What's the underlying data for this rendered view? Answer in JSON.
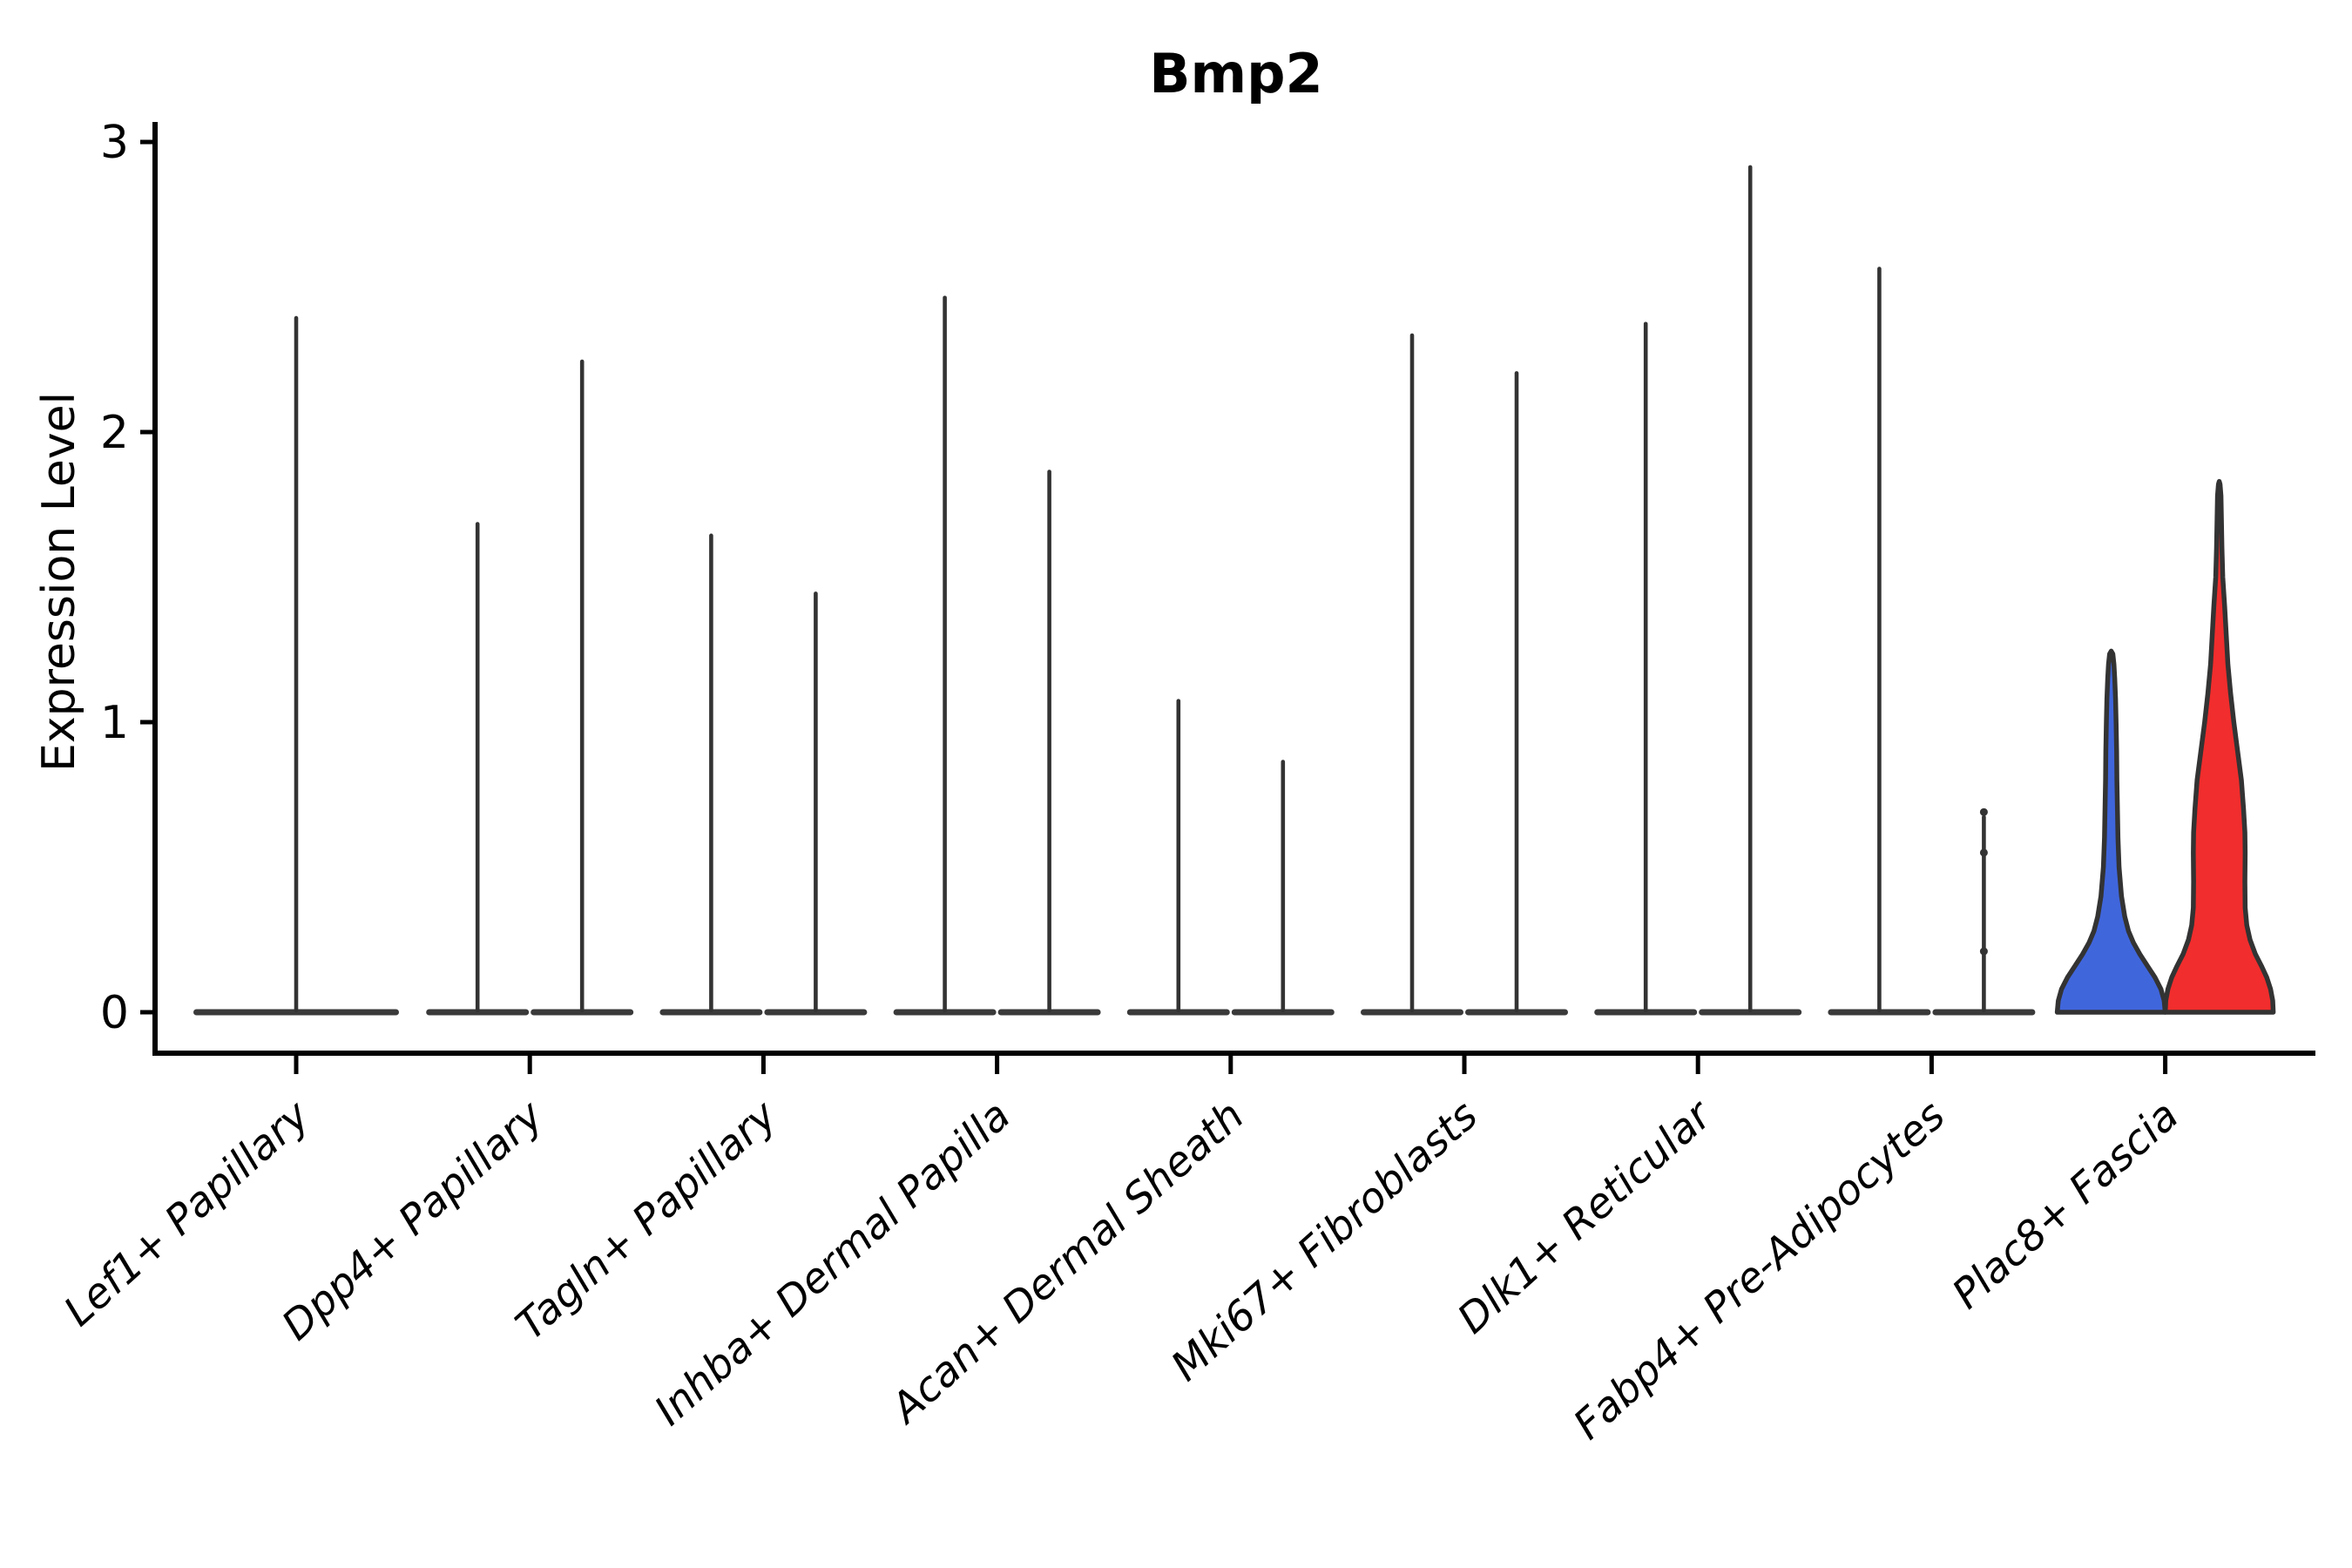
{
  "title": "Bmp2",
  "y_axis_title": "Expression Level",
  "chart_data": {
    "type": "violin",
    "title": "Bmp2",
    "xlabel": "",
    "ylabel": "Expression Level",
    "ylim": [
      0,
      3
    ],
    "y_ticks": [
      0,
      1,
      2,
      3
    ],
    "grid": false,
    "legend": "none",
    "x_tick_style": "italic, rotated 42deg, right-anchored",
    "categories": [
      "Lef1+ Papillary",
      "Dpp4+ Papillary",
      "Tagln+ Papillary",
      "Inhba+ Dermal Papilla",
      "Acan+ Dermal Sheath",
      "Mki67+ Fibroblasts",
      "Dlk1+ Reticular",
      "Fabp4+ Pre-Adipocytes",
      "Plac8+ Fascia"
    ],
    "violins": [
      {
        "category_index": 0,
        "position": "center",
        "kind": "spike",
        "max_expression": 2.4,
        "base_width": 236
      },
      {
        "category_index": 1,
        "position": "left",
        "kind": "spike",
        "max_expression": 1.69,
        "base_width": 118
      },
      {
        "category_index": 1,
        "position": "right",
        "kind": "spike",
        "max_expression": 2.25,
        "base_width": 118
      },
      {
        "category_index": 2,
        "position": "left",
        "kind": "spike",
        "max_expression": 1.65,
        "base_width": 118
      },
      {
        "category_index": 2,
        "position": "right",
        "kind": "spike",
        "max_expression": 1.45,
        "base_width": 118
      },
      {
        "category_index": 3,
        "position": "left",
        "kind": "spike",
        "max_expression": 2.47,
        "base_width": 118
      },
      {
        "category_index": 3,
        "position": "right",
        "kind": "spike",
        "max_expression": 1.87,
        "base_width": 118
      },
      {
        "category_index": 4,
        "position": "left",
        "kind": "spike",
        "max_expression": 1.08,
        "base_width": 118
      },
      {
        "category_index": 4,
        "position": "right",
        "kind": "spike",
        "max_expression": 0.87,
        "base_width": 118
      },
      {
        "category_index": 5,
        "position": "left",
        "kind": "spike",
        "max_expression": 2.34,
        "base_width": 118
      },
      {
        "category_index": 5,
        "position": "right",
        "kind": "spike",
        "max_expression": 2.21,
        "base_width": 118
      },
      {
        "category_index": 6,
        "position": "left",
        "kind": "spike",
        "max_expression": 2.38,
        "base_width": 118
      },
      {
        "category_index": 6,
        "position": "right",
        "kind": "spike",
        "max_expression": 2.92,
        "base_width": 118
      },
      {
        "category_index": 7,
        "position": "left",
        "kind": "spike",
        "max_expression": 2.57,
        "base_width": 118
      },
      {
        "category_index": 7,
        "position": "right",
        "kind": "spike",
        "max_expression": 0.68,
        "base_width": 118,
        "point_markers": [
          0.21,
          0.55,
          0.69
        ]
      },
      {
        "category_index": 8,
        "position": "left",
        "kind": "filled",
        "fill": "#4066DC",
        "max_expression": 1.245,
        "profile": [
          [
            0,
            1.0
          ],
          [
            0.04,
            0.98
          ],
          [
            0.08,
            0.92
          ],
          [
            0.12,
            0.81
          ],
          [
            0.16,
            0.67
          ],
          [
            0.2,
            0.53
          ],
          [
            0.24,
            0.41
          ],
          [
            0.28,
            0.32
          ],
          [
            0.33,
            0.25
          ],
          [
            0.4,
            0.19
          ],
          [
            0.5,
            0.145
          ],
          [
            0.6,
            0.125
          ],
          [
            0.7,
            0.115
          ],
          [
            0.8,
            0.105
          ],
          [
            0.9,
            0.1
          ],
          [
            1.0,
            0.09
          ],
          [
            1.08,
            0.08
          ],
          [
            1.15,
            0.065
          ],
          [
            1.2,
            0.05
          ],
          [
            1.235,
            0.03
          ],
          [
            1.245,
            0.0
          ]
        ]
      },
      {
        "category_index": 8,
        "position": "right",
        "kind": "filled",
        "fill": "#F12D2D",
        "max_expression": 1.83,
        "profile": [
          [
            0,
            1.0
          ],
          [
            0.04,
            0.99
          ],
          [
            0.08,
            0.95
          ],
          [
            0.12,
            0.88
          ],
          [
            0.16,
            0.78
          ],
          [
            0.2,
            0.67
          ],
          [
            0.25,
            0.57
          ],
          [
            0.3,
            0.51
          ],
          [
            0.36,
            0.48
          ],
          [
            0.45,
            0.475
          ],
          [
            0.55,
            0.48
          ],
          [
            0.62,
            0.475
          ],
          [
            0.7,
            0.45
          ],
          [
            0.8,
            0.41
          ],
          [
            0.9,
            0.34
          ],
          [
            1.0,
            0.27
          ],
          [
            1.1,
            0.21
          ],
          [
            1.2,
            0.16
          ],
          [
            1.3,
            0.13
          ],
          [
            1.4,
            0.1
          ],
          [
            1.5,
            0.065
          ],
          [
            1.6,
            0.05
          ],
          [
            1.7,
            0.04
          ],
          [
            1.78,
            0.032
          ],
          [
            1.82,
            0.015
          ],
          [
            1.83,
            0.0
          ]
        ]
      }
    ],
    "colors": {
      "spike_and_outline": "#333333",
      "flat_base_bar": "#3a3a3a",
      "axis": "#000000",
      "violin_blue": "#4066DC",
      "violin_red": "#F12D2D"
    }
  }
}
